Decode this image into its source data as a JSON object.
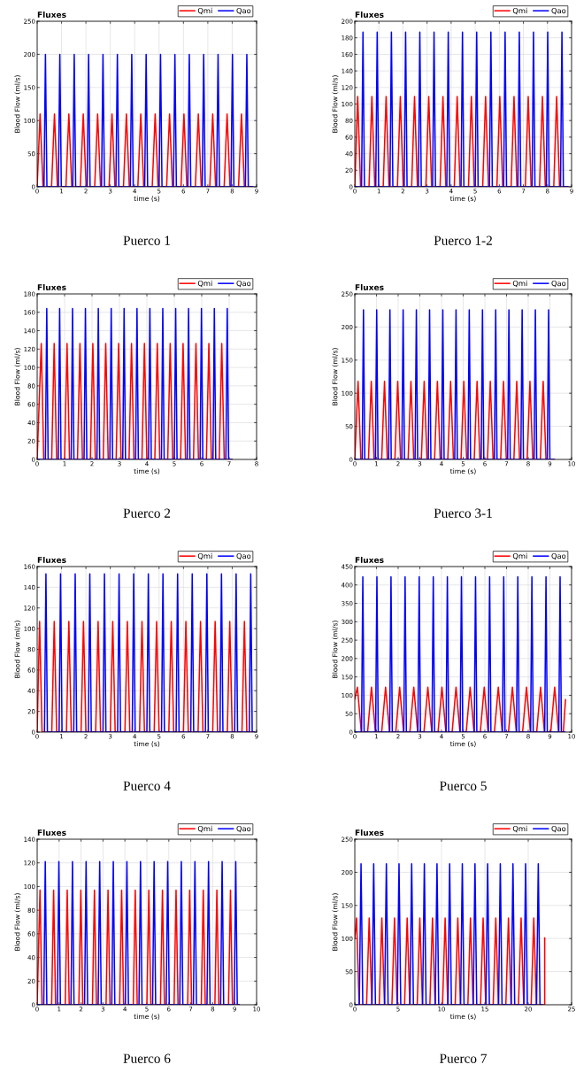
{
  "chart_data": [
    {
      "type": "line",
      "title": "Fluxes",
      "xlabel": "time (s)",
      "ylabel": "Blood Flow (ml/s)",
      "annotations": [
        "Puerco 1"
      ],
      "xlim": [
        0,
        9
      ],
      "ylim": [
        0,
        250
      ],
      "xticks": [
        0,
        1,
        2,
        3,
        4,
        5,
        6,
        7,
        8,
        9
      ],
      "yticks": [
        0,
        50,
        100,
        150,
        200,
        250
      ],
      "grid": true,
      "legend": "top right",
      "series": [
        {
          "name": "Qmi",
          "color": "#ff0000",
          "x": [
            0,
            0.12,
            0.24,
            0.59,
            0.71,
            0.83,
            1.18,
            1.3,
            1.42,
            1.77,
            1.89,
            2.01,
            2.36,
            2.48,
            2.6,
            2.95,
            3.07,
            3.19,
            3.54,
            3.66,
            3.78,
            4.13,
            4.25,
            4.37,
            4.72,
            4.84,
            4.96,
            5.31,
            5.43,
            5.55,
            5.9,
            6.02,
            6.14,
            6.49,
            6.61,
            6.73,
            7.08,
            7.2,
            7.32,
            7.67,
            7.79,
            7.91,
            8.26,
            8.38,
            8.5,
            8.85
          ],
          "values": [
            0,
            110,
            0,
            0,
            110,
            0,
            0,
            110,
            0,
            0,
            110,
            0,
            0,
            110,
            0,
            0,
            110,
            0,
            0,
            110,
            0,
            0,
            110,
            0,
            0,
            110,
            0,
            0,
            110,
            0,
            0,
            110,
            0,
            0,
            110,
            0,
            0,
            110,
            0,
            0,
            110,
            0,
            0,
            110,
            0,
            0
          ]
        },
        {
          "name": "Qao",
          "color": "#0000ff",
          "x": [
            0,
            0.28,
            0.34,
            0.4,
            0.87,
            0.93,
            0.99,
            1.46,
            1.52,
            1.58,
            2.05,
            2.11,
            2.17,
            2.64,
            2.7,
            2.76,
            3.23,
            3.29,
            3.35,
            3.82,
            3.88,
            3.94,
            4.41,
            4.47,
            4.53,
            5.0,
            5.06,
            5.12,
            5.59,
            5.65,
            5.71,
            6.18,
            6.24,
            6.3,
            6.77,
            6.83,
            6.89,
            7.36,
            7.42,
            7.48,
            7.95,
            8.01,
            8.07,
            8.54,
            8.6,
            8.66,
            8.85
          ],
          "values": [
            0,
            0,
            200,
            0,
            0,
            200,
            0,
            0,
            200,
            0,
            0,
            200,
            0,
            0,
            200,
            0,
            0,
            200,
            0,
            0,
            200,
            0,
            0,
            200,
            0,
            0,
            200,
            0,
            0,
            200,
            0,
            0,
            200,
            0,
            0,
            200,
            0,
            0,
            200,
            0,
            0,
            200,
            0,
            0,
            200,
            0,
            0
          ]
        }
      ]
    },
    {
      "type": "line",
      "title": "Fluxes",
      "xlabel": "time (s)",
      "ylabel": "Blood Flow (ml/s)",
      "annotations": [
        "Puerco 1-2"
      ],
      "xlim": [
        0,
        9
      ],
      "ylim": [
        0,
        200
      ],
      "xticks": [
        0,
        1,
        2,
        3,
        4,
        5,
        6,
        7,
        8,
        9
      ],
      "yticks": [
        0,
        20,
        40,
        60,
        80,
        100,
        120,
        140,
        160,
        180,
        200
      ],
      "grid": true,
      "legend": "top right",
      "series": [
        {
          "name": "Qmi",
          "color": "#ff0000",
          "x": [
            0,
            0.12,
            0.24,
            0.59,
            0.71,
            0.83,
            1.18,
            1.3,
            1.42,
            1.77,
            1.89,
            2.01,
            2.36,
            2.48,
            2.6,
            2.95,
            3.07,
            3.19,
            3.54,
            3.66,
            3.78,
            4.13,
            4.25,
            4.37,
            4.72,
            4.84,
            4.96,
            5.31,
            5.43,
            5.55,
            5.9,
            6.02,
            6.14,
            6.49,
            6.61,
            6.73,
            7.08,
            7.2,
            7.32,
            7.67,
            7.79,
            7.91,
            8.26,
            8.38,
            8.5,
            8.85
          ],
          "values": [
            0,
            109,
            0,
            0,
            109,
            0,
            0,
            109,
            0,
            0,
            109,
            0,
            0,
            109,
            0,
            0,
            109,
            0,
            0,
            109,
            0,
            0,
            109,
            0,
            0,
            109,
            0,
            0,
            109,
            0,
            0,
            109,
            0,
            0,
            109,
            0,
            0,
            109,
            0,
            0,
            109,
            0,
            0,
            109,
            0,
            0
          ]
        },
        {
          "name": "Qao",
          "color": "#0000ff",
          "x": [
            0,
            0.28,
            0.34,
            0.4,
            0.87,
            0.93,
            0.99,
            1.46,
            1.52,
            1.58,
            2.05,
            2.11,
            2.17,
            2.64,
            2.7,
            2.76,
            3.23,
            3.29,
            3.35,
            3.82,
            3.88,
            3.94,
            4.41,
            4.47,
            4.53,
            5.0,
            5.06,
            5.12,
            5.59,
            5.65,
            5.71,
            6.18,
            6.24,
            6.3,
            6.77,
            6.83,
            6.89,
            7.36,
            7.42,
            7.48,
            7.95,
            8.01,
            8.07,
            8.54,
            8.6,
            8.66,
            8.85
          ],
          "values": [
            0,
            0,
            187,
            0,
            0,
            187,
            0,
            0,
            187,
            0,
            0,
            187,
            0,
            0,
            187,
            0,
            0,
            187,
            0,
            0,
            187,
            0,
            0,
            187,
            0,
            0,
            187,
            0,
            0,
            187,
            0,
            0,
            187,
            0,
            0,
            187,
            0,
            0,
            187,
            0,
            0,
            187,
            0,
            0,
            187,
            0,
            0
          ]
        }
      ]
    },
    {
      "type": "line",
      "title": "Fluxes",
      "xlabel": "time (s)",
      "ylabel": "Blood Flow (ml/s)",
      "annotations": [
        "Puerco 2"
      ],
      "xlim": [
        0,
        8
      ],
      "ylim": [
        0,
        180
      ],
      "xticks": [
        0,
        1,
        2,
        3,
        4,
        5,
        6,
        7,
        8
      ],
      "yticks": [
        0,
        20,
        40,
        60,
        80,
        100,
        120,
        140,
        160,
        180
      ],
      "grid": true,
      "legend": "top right",
      "series": [
        {
          "name": "Qmi",
          "color": "#ff0000",
          "x": [
            0,
            0.15,
            0.24,
            0.53,
            0.62,
            0.71,
            1.0,
            1.09,
            1.18,
            1.47,
            1.56,
            1.65,
            1.94,
            2.03,
            2.12,
            2.41,
            2.5,
            2.59,
            2.88,
            2.97,
            3.06,
            3.35,
            3.44,
            3.53,
            3.82,
            3.91,
            4.0,
            4.29,
            4.38,
            4.47,
            4.76,
            4.85,
            4.94,
            5.23,
            5.32,
            5.41,
            5.7,
            5.79,
            5.88,
            6.17,
            6.26,
            6.35,
            6.64,
            6.73,
            6.82,
            7.1
          ],
          "values": [
            0,
            126,
            0,
            0,
            126,
            0,
            0,
            126,
            0,
            0,
            126,
            0,
            0,
            126,
            0,
            0,
            126,
            0,
            0,
            126,
            0,
            0,
            126,
            0,
            0,
            126,
            0,
            0,
            126,
            0,
            0,
            126,
            0,
            0,
            126,
            0,
            0,
            126,
            0,
            0,
            126,
            0,
            0,
            126,
            0,
            0
          ]
        },
        {
          "name": "Qao",
          "color": "#0000ff",
          "x": [
            0,
            0.3,
            0.35,
            0.4,
            0.77,
            0.82,
            0.87,
            1.24,
            1.29,
            1.34,
            1.71,
            1.76,
            1.81,
            2.18,
            2.23,
            2.28,
            2.65,
            2.7,
            2.75,
            3.12,
            3.17,
            3.22,
            3.59,
            3.64,
            3.69,
            4.06,
            4.11,
            4.16,
            4.53,
            4.58,
            4.63,
            5.0,
            5.05,
            5.1,
            5.47,
            5.52,
            5.57,
            5.94,
            5.99,
            6.04,
            6.41,
            6.46,
            6.51,
            6.88,
            6.93,
            6.98,
            7.1
          ],
          "values": [
            0,
            0,
            164,
            0,
            0,
            164,
            0,
            0,
            164,
            0,
            0,
            164,
            0,
            0,
            164,
            0,
            0,
            164,
            0,
            0,
            164,
            0,
            0,
            164,
            0,
            0,
            164,
            0,
            0,
            164,
            0,
            0,
            164,
            0,
            0,
            164,
            0,
            0,
            164,
            0,
            0,
            164,
            0,
            0,
            164,
            0,
            0
          ]
        }
      ]
    },
    {
      "type": "line",
      "title": "Fluxes",
      "xlabel": "time (s)",
      "ylabel": "Blood Flow (ml/s)",
      "annotations": [
        "Puerco 3-1"
      ],
      "xlim": [
        0,
        10
      ],
      "ylim": [
        0,
        250
      ],
      "xticks": [
        0,
        1,
        2,
        3,
        4,
        5,
        6,
        7,
        8,
        9,
        10
      ],
      "yticks": [
        0,
        50,
        100,
        150,
        200,
        250
      ],
      "grid": true,
      "legend": "top right",
      "series": [
        {
          "name": "Qmi",
          "color": "#ff0000",
          "x": [
            0,
            0.15,
            0.28,
            0.63,
            0.76,
            0.89,
            1.24,
            1.37,
            1.5,
            1.85,
            1.98,
            2.11,
            2.46,
            2.59,
            2.72,
            3.07,
            3.2,
            3.33,
            3.68,
            3.81,
            3.94,
            4.29,
            4.42,
            4.55,
            4.9,
            5.03,
            5.16,
            5.51,
            5.64,
            5.77,
            6.12,
            6.25,
            6.38,
            6.73,
            6.86,
            6.99,
            7.34,
            7.47,
            7.6,
            7.95,
            8.08,
            8.21,
            8.56,
            8.69,
            8.82,
            9.2
          ],
          "values": [
            0,
            118,
            0,
            0,
            118,
            0,
            0,
            118,
            0,
            0,
            118,
            0,
            0,
            118,
            0,
            0,
            118,
            0,
            0,
            118,
            0,
            0,
            118,
            0,
            0,
            118,
            0,
            0,
            118,
            0,
            0,
            118,
            0,
            0,
            118,
            0,
            0,
            118,
            0,
            0,
            118,
            0,
            0,
            118,
            0,
            0
          ]
        },
        {
          "name": "Qao",
          "color": "#0000ff",
          "x": [
            0,
            0.34,
            0.4,
            0.46,
            0.95,
            1.01,
            1.07,
            1.56,
            1.62,
            1.68,
            2.17,
            2.23,
            2.29,
            2.78,
            2.84,
            2.9,
            3.39,
            3.45,
            3.51,
            4.0,
            4.06,
            4.12,
            4.61,
            4.67,
            4.73,
            5.22,
            5.28,
            5.34,
            5.83,
            5.89,
            5.95,
            6.44,
            6.5,
            6.56,
            7.05,
            7.11,
            7.17,
            7.66,
            7.72,
            7.78,
            8.27,
            8.33,
            8.39,
            8.88,
            8.94,
            9.0,
            9.2
          ],
          "values": [
            0,
            0,
            226,
            0,
            0,
            226,
            0,
            0,
            226,
            0,
            0,
            226,
            0,
            0,
            226,
            0,
            0,
            226,
            0,
            0,
            226,
            0,
            0,
            226,
            0,
            0,
            226,
            0,
            0,
            226,
            0,
            0,
            226,
            0,
            0,
            226,
            0,
            0,
            226,
            0,
            0,
            226,
            0,
            0,
            226,
            0,
            0
          ]
        }
      ]
    },
    {
      "type": "line",
      "title": "Fluxes",
      "xlabel": "time (s)",
      "ylabel": "Blood Flow (ml/s)",
      "annotations": [
        "Puerco 4"
      ],
      "xlim": [
        0,
        9
      ],
      "ylim": [
        0,
        160
      ],
      "xticks": [
        0,
        1,
        2,
        3,
        4,
        5,
        6,
        7,
        8,
        9
      ],
      "yticks": [
        0,
        20,
        40,
        60,
        80,
        100,
        120,
        140,
        160
      ],
      "grid": true,
      "legend": "top right",
      "series": [
        {
          "name": "Qmi",
          "color": "#ff0000",
          "x": [
            0,
            0.1,
            0.2,
            0.6,
            0.7,
            0.8,
            1.2,
            1.3,
            1.4,
            1.8,
            1.9,
            2.0,
            2.4,
            2.5,
            2.6,
            3.0,
            3.1,
            3.2,
            3.6,
            3.7,
            3.8,
            4.2,
            4.3,
            4.4,
            4.8,
            4.9,
            5.0,
            5.4,
            5.5,
            5.6,
            6.0,
            6.1,
            6.2,
            6.6,
            6.7,
            6.8,
            7.2,
            7.3,
            7.4,
            7.8,
            7.9,
            8.0,
            8.4,
            8.5,
            8.6,
            8.9
          ],
          "values": [
            0,
            107,
            0,
            0,
            107,
            0,
            0,
            107,
            0,
            0,
            107,
            0,
            0,
            107,
            0,
            0,
            107,
            0,
            0,
            107,
            0,
            0,
            107,
            0,
            0,
            107,
            0,
            0,
            107,
            0,
            0,
            107,
            0,
            0,
            107,
            0,
            0,
            107,
            0,
            0,
            107,
            0,
            0,
            107,
            0,
            0
          ]
        },
        {
          "name": "Qao",
          "color": "#0000ff",
          "x": [
            0.3,
            0.36,
            0.42,
            0.9,
            0.96,
            1.02,
            1.5,
            1.56,
            1.62,
            2.1,
            2.16,
            2.22,
            2.7,
            2.76,
            2.82,
            3.3,
            3.36,
            3.42,
            3.9,
            3.96,
            4.02,
            4.5,
            4.56,
            4.62,
            5.1,
            5.16,
            5.22,
            5.7,
            5.76,
            5.82,
            6.3,
            6.36,
            6.42,
            6.9,
            6.96,
            7.02,
            7.5,
            7.56,
            7.62,
            8.1,
            8.16,
            8.22,
            8.7,
            8.76,
            8.82,
            8.9
          ],
          "values": [
            0,
            153,
            0,
            0,
            153,
            0,
            0,
            153,
            0,
            0,
            153,
            0,
            0,
            153,
            0,
            0,
            153,
            0,
            0,
            153,
            0,
            0,
            153,
            0,
            0,
            153,
            0,
            0,
            153,
            0,
            0,
            153,
            0,
            0,
            153,
            0,
            0,
            153,
            0,
            0,
            153,
            0,
            0,
            153,
            0,
            0
          ]
        }
      ]
    },
    {
      "type": "line",
      "title": "Fluxes",
      "xlabel": "time (s)",
      "ylabel": "Blood Flow (ml/s)",
      "annotations": [
        "Puerco 5"
      ],
      "xlim": [
        0,
        10
      ],
      "ylim": [
        0,
        450
      ],
      "xticks": [
        0,
        1,
        2,
        3,
        4,
        5,
        6,
        7,
        8,
        9,
        10
      ],
      "yticks": [
        0,
        50,
        100,
        150,
        200,
        250,
        300,
        350,
        400,
        450
      ],
      "grid": true,
      "legend": "top right",
      "series": [
        {
          "name": "Qmi",
          "color": "#ff0000",
          "x": [
            0,
            0.12,
            0.3,
            0.59,
            0.77,
            0.95,
            1.24,
            1.42,
            1.6,
            1.89,
            2.07,
            2.25,
            2.54,
            2.72,
            2.9,
            3.19,
            3.37,
            3.55,
            3.84,
            4.02,
            4.2,
            4.49,
            4.67,
            4.85,
            5.14,
            5.32,
            5.5,
            5.79,
            5.97,
            6.15,
            6.44,
            6.62,
            6.8,
            7.09,
            7.27,
            7.45,
            7.74,
            7.92,
            8.1,
            8.39,
            8.57,
            8.75,
            9.04,
            9.22,
            9.4,
            9.62,
            9.72
          ],
          "values": [
            90,
            122,
            0,
            0,
            122,
            0,
            0,
            122,
            0,
            0,
            122,
            0,
            0,
            122,
            0,
            0,
            122,
            0,
            0,
            122,
            0,
            0,
            122,
            0,
            0,
            122,
            0,
            0,
            122,
            0,
            0,
            122,
            0,
            0,
            122,
            0,
            0,
            122,
            0,
            0,
            122,
            0,
            0,
            122,
            0,
            0,
            88
          ]
        },
        {
          "name": "Qao",
          "color": "#0000ff",
          "x": [
            0,
            0.31,
            0.37,
            0.43,
            0.96,
            1.02,
            1.08,
            1.61,
            1.67,
            1.73,
            2.26,
            2.32,
            2.38,
            2.91,
            2.97,
            3.03,
            3.56,
            3.62,
            3.68,
            4.21,
            4.27,
            4.33,
            4.86,
            4.92,
            4.98,
            5.51,
            5.57,
            5.63,
            6.16,
            6.22,
            6.28,
            6.81,
            6.87,
            6.93,
            7.46,
            7.52,
            7.58,
            8.11,
            8.17,
            8.23,
            8.76,
            8.82,
            8.88,
            9.41,
            9.47,
            9.53,
            9.7
          ],
          "values": [
            0,
            0,
            422,
            0,
            0,
            422,
            0,
            0,
            422,
            0,
            0,
            422,
            0,
            0,
            422,
            0,
            0,
            422,
            0,
            0,
            422,
            0,
            0,
            422,
            0,
            0,
            422,
            0,
            0,
            422,
            0,
            0,
            422,
            0,
            0,
            422,
            0,
            0,
            422,
            0,
            0,
            422,
            0,
            0,
            422,
            0,
            0
          ]
        }
      ]
    },
    {
      "type": "line",
      "title": "Fluxes",
      "xlabel": "time (s)",
      "ylabel": "Blood Flow (ml/s)",
      "annotations": [
        "Puerco 6"
      ],
      "xlim": [
        0,
        10
      ],
      "ylim": [
        0,
        140
      ],
      "xticks": [
        0,
        1,
        2,
        3,
        4,
        5,
        6,
        7,
        8,
        9,
        10
      ],
      "yticks": [
        0,
        20,
        40,
        60,
        80,
        100,
        120,
        140
      ],
      "grid": true,
      "legend": "top right",
      "series": [
        {
          "name": "Qmi",
          "color": "#ff0000",
          "x": [
            0,
            0.13,
            0.22,
            0.66,
            0.75,
            0.84,
            1.28,
            1.37,
            1.46,
            1.9,
            1.99,
            2.08,
            2.52,
            2.61,
            2.7,
            3.14,
            3.23,
            3.32,
            3.76,
            3.85,
            3.94,
            4.38,
            4.47,
            4.56,
            5.0,
            5.09,
            5.18,
            5.62,
            5.71,
            5.8,
            6.24,
            6.33,
            6.42,
            6.86,
            6.95,
            7.04,
            7.48,
            7.57,
            7.66,
            8.1,
            8.19,
            8.28,
            8.72,
            8.81,
            8.9,
            9.2
          ],
          "values": [
            0,
            97,
            0,
            0,
            97,
            0,
            0,
            97,
            0,
            0,
            97,
            0,
            0,
            97,
            0,
            0,
            97,
            0,
            0,
            97,
            0,
            0,
            97,
            0,
            0,
            97,
            0,
            0,
            97,
            0,
            0,
            97,
            0,
            0,
            97,
            0,
            0,
            97,
            0,
            0,
            97,
            0,
            0,
            97,
            0,
            0
          ]
        },
        {
          "name": "Qao",
          "color": "#0000ff",
          "x": [
            0,
            0.3,
            0.37,
            0.44,
            0.92,
            0.99,
            1.06,
            1.54,
            1.61,
            1.68,
            2.16,
            2.23,
            2.3,
            2.78,
            2.85,
            2.92,
            3.4,
            3.47,
            3.54,
            4.02,
            4.09,
            4.16,
            4.64,
            4.71,
            4.78,
            5.26,
            5.33,
            5.4,
            5.88,
            5.95,
            6.02,
            6.5,
            6.57,
            6.64,
            7.12,
            7.19,
            7.26,
            7.74,
            7.81,
            7.88,
            8.36,
            8.43,
            8.5,
            8.98,
            9.05,
            9.12,
            9.2
          ],
          "values": [
            0,
            0,
            121,
            0,
            0,
            121,
            0,
            0,
            121,
            0,
            0,
            121,
            0,
            0,
            121,
            0,
            0,
            121,
            0,
            0,
            121,
            0,
            0,
            121,
            0,
            0,
            121,
            0,
            0,
            121,
            0,
            0,
            121,
            0,
            0,
            121,
            0,
            0,
            121,
            0,
            0,
            121,
            0,
            0,
            121,
            0,
            0
          ]
        }
      ]
    },
    {
      "type": "line",
      "title": "Fluxes",
      "xlabel": "time (s)",
      "ylabel": "Blood Flow (ml/s)",
      "annotations": [
        "Puerco 7"
      ],
      "xlim": [
        0,
        25
      ],
      "ylim": [
        0,
        250
      ],
      "xticks": [
        0,
        5,
        10,
        15,
        20,
        25
      ],
      "yticks": [
        0,
        50,
        100,
        150,
        200,
        250
      ],
      "grid": true,
      "legend": "top right",
      "series": [
        {
          "name": "Qmi",
          "color": "#ff0000",
          "x": [
            0,
            0.2,
            0.5,
            1.36,
            1.66,
            1.96,
            2.82,
            3.12,
            3.42,
            4.28,
            4.58,
            4.88,
            5.74,
            6.04,
            6.34,
            7.2,
            7.5,
            7.8,
            8.66,
            8.96,
            9.26,
            10.12,
            10.42,
            10.72,
            11.58,
            11.88,
            12.18,
            13.04,
            13.34,
            13.64,
            14.5,
            14.8,
            15.1,
            15.96,
            16.26,
            16.56,
            17.42,
            17.72,
            18.02,
            18.88,
            19.18,
            19.48,
            20.34,
            20.64,
            20.94,
            21.9,
            21.9
          ],
          "values": [
            100,
            131,
            0,
            0,
            131,
            0,
            0,
            131,
            0,
            0,
            131,
            0,
            0,
            131,
            0,
            0,
            131,
            0,
            0,
            131,
            0,
            0,
            131,
            0,
            0,
            131,
            0,
            0,
            131,
            0,
            0,
            131,
            0,
            0,
            131,
            0,
            0,
            131,
            0,
            0,
            131,
            0,
            0,
            131,
            0,
            0,
            101
          ]
        },
        {
          "name": "Qao",
          "color": "#0000ff",
          "x": [
            0,
            0.52,
            0.72,
            0.92,
            1.98,
            2.18,
            2.38,
            3.44,
            3.64,
            3.84,
            4.9,
            5.1,
            5.3,
            6.36,
            6.56,
            6.76,
            7.82,
            8.02,
            8.22,
            9.28,
            9.48,
            9.68,
            10.74,
            10.94,
            11.14,
            12.2,
            12.4,
            12.6,
            13.66,
            13.86,
            14.06,
            15.12,
            15.32,
            15.52,
            16.58,
            16.78,
            16.98,
            18.04,
            18.24,
            18.44,
            19.5,
            19.7,
            19.9,
            20.96,
            21.16,
            21.36,
            21.6
          ],
          "values": [
            0,
            0,
            213,
            0,
            0,
            213,
            0,
            0,
            213,
            0,
            0,
            213,
            0,
            0,
            213,
            0,
            0,
            213,
            0,
            0,
            213,
            0,
            0,
            213,
            0,
            0,
            213,
            0,
            0,
            213,
            0,
            0,
            213,
            0,
            0,
            213,
            0,
            0,
            213,
            0,
            0,
            213,
            0,
            0,
            213,
            0,
            0
          ]
        }
      ]
    }
  ]
}
